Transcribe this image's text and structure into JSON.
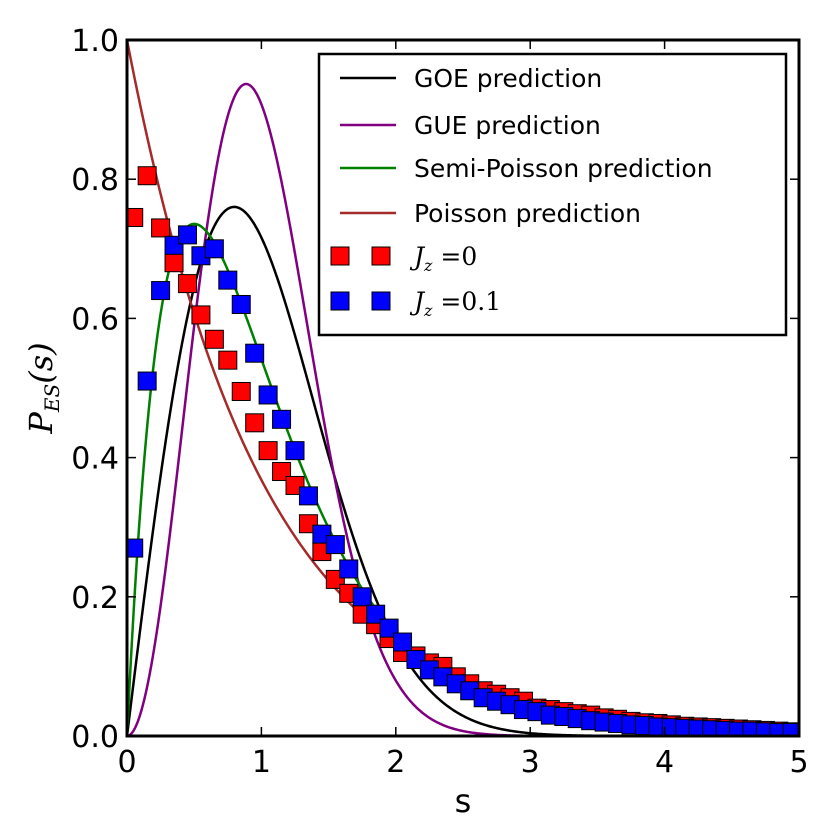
{
  "chart_data": {
    "type": "scatter",
    "xlabel": "s",
    "ylabel": "P",
    "ylabel_sub": "ES",
    "ylabel_arg": "(s)",
    "xlim": [
      0,
      5
    ],
    "ylim": [
      0,
      1
    ],
    "xticks": [
      0,
      1,
      2,
      3,
      4,
      5
    ],
    "yticks": [
      0.0,
      0.2,
      0.4,
      0.6,
      0.8,
      1.0
    ],
    "xtick_labels": [
      "0",
      "1",
      "2",
      "3",
      "4",
      "5"
    ],
    "ytick_labels": [
      "0.0",
      "0.2",
      "0.4",
      "0.6",
      "0.8",
      "1.0"
    ],
    "legend_position": "top-right",
    "curves": [
      {
        "name": "GOE prediction",
        "color": "#000000",
        "model": "goe"
      },
      {
        "name": "GUE prediction",
        "color": "#800080",
        "model": "gue"
      },
      {
        "name": "Semi-Poisson prediction",
        "color": "#008000",
        "model": "semi-poisson"
      },
      {
        "name": "Poisson prediction",
        "color": "#a52a2a",
        "model": "poisson"
      }
    ],
    "series": [
      {
        "name": "J_z = 0",
        "legend_main": "J",
        "legend_sub": "z",
        "legend_rest": " =0",
        "color": "#ff0000",
        "points": [
          [
            0.05,
            0.745
          ],
          [
            0.15,
            0.805
          ],
          [
            0.25,
            0.73
          ],
          [
            0.35,
            0.68
          ],
          [
            0.45,
            0.65
          ],
          [
            0.55,
            0.605
          ],
          [
            0.65,
            0.57
          ],
          [
            0.75,
            0.54
          ],
          [
            0.85,
            0.495
          ],
          [
            0.95,
            0.45
          ],
          [
            1.05,
            0.41
          ],
          [
            1.15,
            0.38
          ],
          [
            1.25,
            0.36
          ],
          [
            1.35,
            0.305
          ],
          [
            1.45,
            0.265
          ],
          [
            1.55,
            0.225
          ],
          [
            1.65,
            0.205
          ],
          [
            1.75,
            0.175
          ],
          [
            1.85,
            0.16
          ],
          [
            1.95,
            0.14
          ],
          [
            2.05,
            0.12
          ],
          [
            2.15,
            0.115
          ],
          [
            2.25,
            0.105
          ],
          [
            2.35,
            0.1
          ],
          [
            2.45,
            0.085
          ],
          [
            2.55,
            0.075
          ],
          [
            2.65,
            0.065
          ],
          [
            2.75,
            0.06
          ],
          [
            2.85,
            0.055
          ],
          [
            2.95,
            0.05
          ],
          [
            3.05,
            0.04
          ],
          [
            3.15,
            0.038
          ],
          [
            3.25,
            0.035
          ],
          [
            3.35,
            0.032
          ],
          [
            3.45,
            0.03
          ],
          [
            3.55,
            0.026
          ],
          [
            3.65,
            0.024
          ],
          [
            3.75,
            0.021
          ],
          [
            3.85,
            0.019
          ],
          [
            3.95,
            0.018
          ],
          [
            4.05,
            0.016
          ],
          [
            4.15,
            0.014
          ],
          [
            4.25,
            0.013
          ],
          [
            4.35,
            0.012
          ],
          [
            4.45,
            0.011
          ],
          [
            4.55,
            0.01
          ],
          [
            4.65,
            0.009
          ],
          [
            4.75,
            0.008
          ],
          [
            4.85,
            0.007
          ],
          [
            4.95,
            0.006
          ]
        ]
      },
      {
        "name": "J_z = 0.1",
        "legend_main": "J",
        "legend_sub": "z",
        "legend_rest": " =0.1",
        "color": "#0000ff",
        "points": [
          [
            0.05,
            0.27
          ],
          [
            0.15,
            0.51
          ],
          [
            0.25,
            0.64
          ],
          [
            0.35,
            0.705
          ],
          [
            0.45,
            0.72
          ],
          [
            0.55,
            0.69
          ],
          [
            0.65,
            0.7
          ],
          [
            0.75,
            0.655
          ],
          [
            0.85,
            0.62
          ],
          [
            0.95,
            0.55
          ],
          [
            1.05,
            0.49
          ],
          [
            1.15,
            0.455
          ],
          [
            1.25,
            0.41
          ],
          [
            1.35,
            0.345
          ],
          [
            1.45,
            0.29
          ],
          [
            1.55,
            0.275
          ],
          [
            1.65,
            0.24
          ],
          [
            1.75,
            0.2
          ],
          [
            1.85,
            0.175
          ],
          [
            1.95,
            0.155
          ],
          [
            2.05,
            0.135
          ],
          [
            2.15,
            0.11
          ],
          [
            2.25,
            0.095
          ],
          [
            2.35,
            0.085
          ],
          [
            2.45,
            0.075
          ],
          [
            2.55,
            0.065
          ],
          [
            2.65,
            0.055
          ],
          [
            2.75,
            0.05
          ],
          [
            2.85,
            0.045
          ],
          [
            2.95,
            0.038
          ],
          [
            3.05,
            0.035
          ],
          [
            3.15,
            0.03
          ],
          [
            3.25,
            0.028
          ],
          [
            3.35,
            0.025
          ],
          [
            3.45,
            0.022
          ],
          [
            3.55,
            0.02
          ],
          [
            3.65,
            0.018
          ],
          [
            3.75,
            0.016
          ],
          [
            3.85,
            0.015
          ],
          [
            3.95,
            0.013
          ],
          [
            4.05,
            0.012
          ],
          [
            4.15,
            0.011
          ],
          [
            4.25,
            0.01
          ],
          [
            4.35,
            0.009
          ],
          [
            4.45,
            0.008
          ],
          [
            4.55,
            0.007
          ],
          [
            4.65,
            0.007
          ],
          [
            4.75,
            0.006
          ],
          [
            4.85,
            0.005
          ],
          [
            4.95,
            0.005
          ]
        ]
      }
    ]
  }
}
